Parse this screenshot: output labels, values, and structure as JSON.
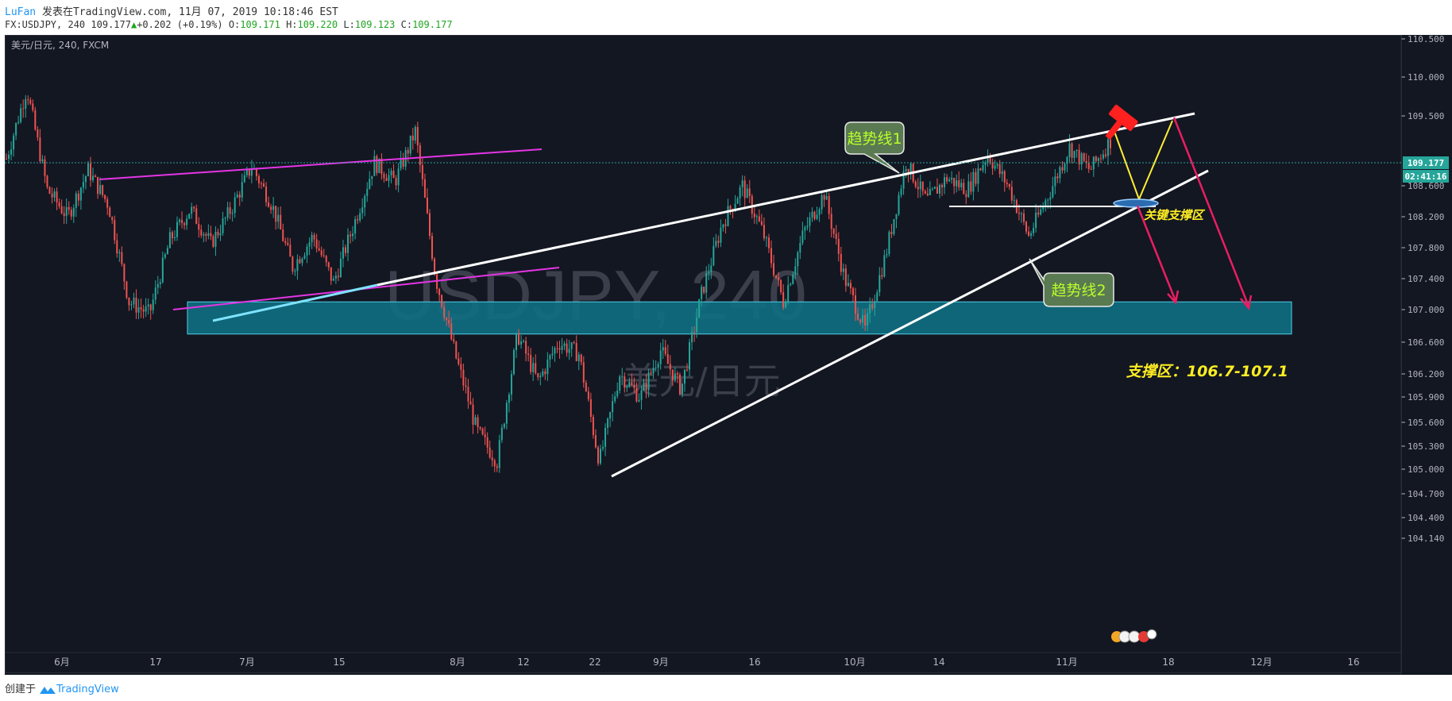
{
  "header": {
    "user": "LuFan",
    "published": "发表在TradingView.com, 11月 07, 2019 10:18:46 EST",
    "symbol_line": "FX:USDJPY, 240",
    "last": "109.177",
    "change_arrow": "▲",
    "change": "+0.202 (+0.19%)",
    "o_label": "O:",
    "o": "109.171",
    "h_label": "H:",
    "h": "109.220",
    "l_label": "L:",
    "l": "109.123",
    "c_label": "C:",
    "c": "109.177"
  },
  "footer": {
    "created": "创建于",
    "brand": "TradingView"
  },
  "colors": {
    "background": "#131722",
    "up": "#26a69a",
    "down": "#ef5350",
    "white_line": "#ffffff",
    "magenta": "#e535e5",
    "zone": "#0f6e80",
    "zone_text": "#ffee22",
    "arrow": "#e91e63",
    "yellow_path": "#ffee33",
    "callout_fill": "#5a7a52",
    "callout_text": "#b8ff2a"
  },
  "chart_data": {
    "type": "candlestick",
    "symbol_label": "美元/日元, 240, FXCM",
    "watermark": "USDJPY, 240",
    "watermark_sub": "美元/日元",
    "price_axis": {
      "ticks": [
        "110.500",
        "110.000",
        "109.500",
        "108.600",
        "108.200",
        "107.800",
        "107.400",
        "107.000",
        "106.600",
        "106.200",
        "105.900",
        "105.600",
        "105.300",
        "105.000",
        "104.700",
        "104.400",
        "104.140"
      ],
      "last_price": "109.177",
      "countdown": "02:41:16"
    },
    "time_axis": {
      "ticks": [
        "6月",
        "17",
        "7月",
        "15",
        "8月",
        "12",
        "22",
        "9月",
        "16",
        "10月",
        "14",
        "11月",
        "18",
        "12月",
        "16"
      ]
    },
    "anchors": [
      {
        "p": 108.95
      },
      {
        "p": 109.85
      },
      {
        "p": 108.55
      },
      {
        "p": 108.2
      },
      {
        "p": 108.8
      },
      {
        "p": 108.35
      },
      {
        "p": 107.1
      },
      {
        "p": 106.95
      },
      {
        "p": 107.9
      },
      {
        "p": 108.3
      },
      {
        "p": 107.85
      },
      {
        "p": 108.3
      },
      {
        "p": 108.85
      },
      {
        "p": 108.35
      },
      {
        "p": 107.55
      },
      {
        "p": 107.95
      },
      {
        "p": 107.35
      },
      {
        "p": 108.1
      },
      {
        "p": 108.9
      },
      {
        "p": 108.65
      },
      {
        "p": 109.3
      },
      {
        "p": 107.4
      },
      {
        "p": 106.4
      },
      {
        "p": 105.5
      },
      {
        "p": 105.1
      },
      {
        "p": 106.7
      },
      {
        "p": 106.1
      },
      {
        "p": 106.6
      },
      {
        "p": 106.45
      },
      {
        "p": 105.1
      },
      {
        "p": 106.2
      },
      {
        "p": 105.9
      },
      {
        "p": 106.5
      },
      {
        "p": 106.0
      },
      {
        "p": 107.2
      },
      {
        "p": 108.1
      },
      {
        "p": 108.6
      },
      {
        "p": 108.0
      },
      {
        "p": 107.1
      },
      {
        "p": 108.0
      },
      {
        "p": 108.5
      },
      {
        "p": 107.4
      },
      {
        "p": 106.75
      },
      {
        "p": 107.7
      },
      {
        "p": 108.9
      },
      {
        "p": 108.4
      },
      {
        "p": 108.7
      },
      {
        "p": 108.55
      },
      {
        "p": 109.0
      },
      {
        "p": 108.6
      },
      {
        "p": 107.95
      },
      {
        "p": 108.5
      },
      {
        "p": 109.1
      },
      {
        "p": 108.8
      },
      {
        "p": 109.18
      }
    ],
    "annotations": {
      "trend1": "趋势线1",
      "trend2": "趋势线2",
      "key_support": "关键支撑区",
      "support_zone": "支撑区：106.7-107.1",
      "zone_low": 106.7,
      "zone_high": 107.1
    }
  }
}
